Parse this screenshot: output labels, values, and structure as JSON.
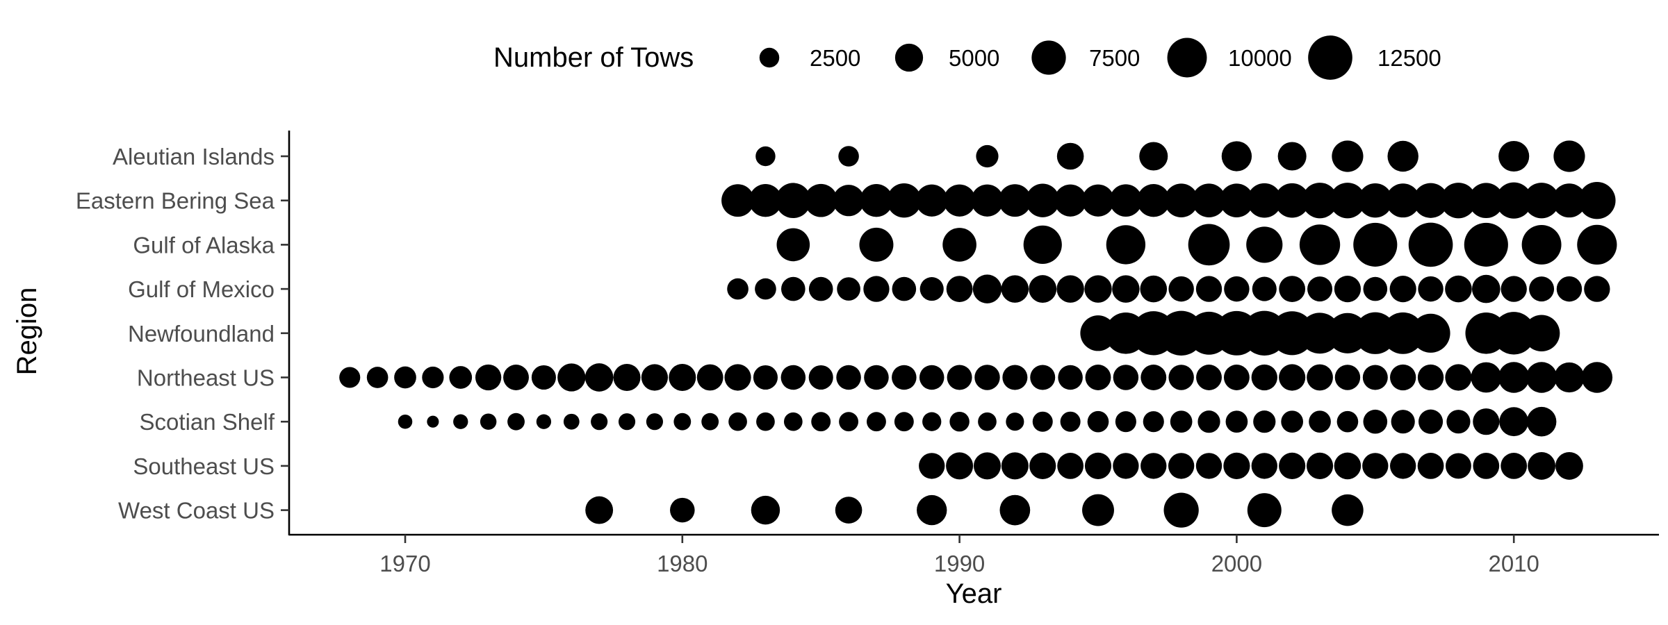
{
  "chart_data": {
    "type": "scatter",
    "xlabel": "Year",
    "ylabel": "Region",
    "xlim": [
      1965.7,
      2015.5
    ],
    "x_ticks": [
      1970,
      1980,
      1990,
      2000,
      2010
    ],
    "categories": [
      "Aleutian Islands",
      "Eastern Bering Sea",
      "Gulf of Alaska",
      "Gulf of Mexico",
      "Newfoundland",
      "Northeast US",
      "Scotian Shelf",
      "Southeast US",
      "West Coast US"
    ],
    "legend": {
      "title": "Number of Tows",
      "position": "top",
      "sizes": [
        2500,
        5000,
        7500,
        10000,
        12500
      ]
    },
    "grid": false,
    "series": [
      {
        "category": "Aleutian Islands",
        "points": [
          [
            1983,
            2500
          ],
          [
            1986,
            2700
          ],
          [
            1991,
            3200
          ],
          [
            1994,
            4600
          ],
          [
            1997,
            5200
          ],
          [
            2000,
            5800
          ],
          [
            2002,
            5200
          ],
          [
            2004,
            6300
          ],
          [
            2006,
            6100
          ],
          [
            2010,
            6000
          ],
          [
            2012,
            6300
          ]
        ]
      },
      {
        "category": "Eastern Bering Sea",
        "points": [
          [
            1982,
            6800
          ],
          [
            1983,
            6900
          ],
          [
            1984,
            7900
          ],
          [
            1985,
            7000
          ],
          [
            1986,
            6300
          ],
          [
            1987,
            6900
          ],
          [
            1988,
            7500
          ],
          [
            1989,
            6600
          ],
          [
            1990,
            6600
          ],
          [
            1991,
            6600
          ],
          [
            1992,
            6800
          ],
          [
            1993,
            7200
          ],
          [
            1994,
            6600
          ],
          [
            1995,
            6600
          ],
          [
            1996,
            6700
          ],
          [
            1997,
            6900
          ],
          [
            1998,
            7300
          ],
          [
            1999,
            7300
          ],
          [
            2000,
            7300
          ],
          [
            2001,
            7600
          ],
          [
            2002,
            7600
          ],
          [
            2003,
            8100
          ],
          [
            2004,
            8100
          ],
          [
            2005,
            7500
          ],
          [
            2006,
            7400
          ],
          [
            2007,
            7800
          ],
          [
            2008,
            8100
          ],
          [
            2009,
            7900
          ],
          [
            2010,
            8400
          ],
          [
            2011,
            8100
          ],
          [
            2012,
            7400
          ],
          [
            2013,
            8800
          ]
        ]
      },
      {
        "category": "Gulf of Alaska",
        "points": [
          [
            1984,
            7000
          ],
          [
            1987,
            7400
          ],
          [
            1990,
            7300
          ],
          [
            1993,
            9400
          ],
          [
            1996,
            9800
          ],
          [
            1999,
            11000
          ],
          [
            2001,
            8400
          ],
          [
            2003,
            10500
          ],
          [
            2005,
            12300
          ],
          [
            2007,
            12500
          ],
          [
            2009,
            12300
          ],
          [
            2011,
            10000
          ],
          [
            2013,
            10100
          ]
        ]
      },
      {
        "category": "Gulf of Mexico",
        "points": [
          [
            1982,
            2900
          ],
          [
            1983,
            2900
          ],
          [
            1984,
            3700
          ],
          [
            1985,
            3700
          ],
          [
            1986,
            3500
          ],
          [
            1987,
            4300
          ],
          [
            1988,
            3700
          ],
          [
            1989,
            3600
          ],
          [
            1990,
            4400
          ],
          [
            1991,
            5300
          ],
          [
            1992,
            4800
          ],
          [
            1993,
            4900
          ],
          [
            1994,
            4800
          ],
          [
            1995,
            4800
          ],
          [
            1996,
            4800
          ],
          [
            1997,
            4600
          ],
          [
            1998,
            4100
          ],
          [
            1999,
            4300
          ],
          [
            2000,
            4100
          ],
          [
            2001,
            3800
          ],
          [
            2002,
            4400
          ],
          [
            2003,
            4000
          ],
          [
            2004,
            4500
          ],
          [
            2005,
            3700
          ],
          [
            2006,
            4500
          ],
          [
            2007,
            4100
          ],
          [
            2008,
            4600
          ],
          [
            2009,
            5100
          ],
          [
            2010,
            4300
          ],
          [
            2011,
            4000
          ],
          [
            2012,
            4100
          ],
          [
            2013,
            4300
          ]
        ]
      },
      {
        "category": "Newfoundland",
        "points": [
          [
            1995,
            8100
          ],
          [
            1996,
            11000
          ],
          [
            1997,
            12400
          ],
          [
            1998,
            12800
          ],
          [
            1999,
            11800
          ],
          [
            2000,
            12600
          ],
          [
            2001,
            12800
          ],
          [
            2002,
            12300
          ],
          [
            2003,
            10700
          ],
          [
            2004,
            10400
          ],
          [
            2005,
            11200
          ],
          [
            2006,
            11100
          ],
          [
            2007,
            9700
          ],
          [
            2009,
            11000
          ],
          [
            2010,
            11600
          ],
          [
            2011,
            8500
          ]
        ]
      },
      {
        "category": "Northeast US",
        "points": [
          [
            1968,
            2800
          ],
          [
            1969,
            2900
          ],
          [
            1970,
            3100
          ],
          [
            1971,
            3000
          ],
          [
            1972,
            3300
          ],
          [
            1973,
            4300
          ],
          [
            1974,
            4200
          ],
          [
            1975,
            3800
          ],
          [
            1976,
            5000
          ],
          [
            1977,
            5100
          ],
          [
            1978,
            4700
          ],
          [
            1979,
            4500
          ],
          [
            1980,
            4700
          ],
          [
            1981,
            4400
          ],
          [
            1982,
            4500
          ],
          [
            1983,
            3800
          ],
          [
            1984,
            3900
          ],
          [
            1985,
            3800
          ],
          [
            1986,
            3900
          ],
          [
            1987,
            3900
          ],
          [
            1988,
            3900
          ],
          [
            1989,
            3900
          ],
          [
            1990,
            4000
          ],
          [
            1991,
            4100
          ],
          [
            1992,
            4000
          ],
          [
            1993,
            4000
          ],
          [
            1994,
            3900
          ],
          [
            1995,
            4200
          ],
          [
            1996,
            4100
          ],
          [
            1997,
            4200
          ],
          [
            1998,
            4100
          ],
          [
            1999,
            4200
          ],
          [
            2000,
            4200
          ],
          [
            2001,
            4300
          ],
          [
            2002,
            4500
          ],
          [
            2003,
            4400
          ],
          [
            2004,
            4100
          ],
          [
            2005,
            4000
          ],
          [
            2006,
            4300
          ],
          [
            2007,
            4300
          ],
          [
            2008,
            4500
          ],
          [
            2009,
            5900
          ],
          [
            2010,
            6100
          ],
          [
            2011,
            6100
          ],
          [
            2012,
            5800
          ],
          [
            2013,
            6100
          ]
        ]
      },
      {
        "category": "Scotian Shelf",
        "points": [
          [
            1970,
            1300
          ],
          [
            1971,
            900
          ],
          [
            1972,
            1400
          ],
          [
            1973,
            1700
          ],
          [
            1974,
            1900
          ],
          [
            1975,
            1400
          ],
          [
            1976,
            1600
          ],
          [
            1977,
            1800
          ],
          [
            1978,
            1800
          ],
          [
            1979,
            1800
          ],
          [
            1980,
            1900
          ],
          [
            1981,
            1900
          ],
          [
            1982,
            2200
          ],
          [
            1983,
            2200
          ],
          [
            1984,
            2200
          ],
          [
            1985,
            2400
          ],
          [
            1986,
            2400
          ],
          [
            1987,
            2400
          ],
          [
            1988,
            2400
          ],
          [
            1989,
            2300
          ],
          [
            1990,
            2500
          ],
          [
            1991,
            2200
          ],
          [
            1992,
            2100
          ],
          [
            1993,
            2600
          ],
          [
            1994,
            2600
          ],
          [
            1995,
            2900
          ],
          [
            1996,
            2800
          ],
          [
            1997,
            2800
          ],
          [
            1998,
            3100
          ],
          [
            1999,
            3200
          ],
          [
            2000,
            3100
          ],
          [
            2001,
            3200
          ],
          [
            2002,
            3100
          ],
          [
            2003,
            3100
          ],
          [
            2004,
            2900
          ],
          [
            2005,
            3700
          ],
          [
            2006,
            3600
          ],
          [
            2007,
            3800
          ],
          [
            2008,
            3600
          ],
          [
            2009,
            4500
          ],
          [
            2010,
            5400
          ],
          [
            2011,
            5600
          ]
        ]
      },
      {
        "category": "Southeast US",
        "points": [
          [
            1989,
            4300
          ],
          [
            1990,
            4700
          ],
          [
            1991,
            4700
          ],
          [
            1992,
            4700
          ],
          [
            1993,
            4500
          ],
          [
            1994,
            4400
          ],
          [
            1995,
            4500
          ],
          [
            1996,
            4300
          ],
          [
            1997,
            4300
          ],
          [
            1998,
            4300
          ],
          [
            1999,
            4300
          ],
          [
            2000,
            4500
          ],
          [
            2001,
            4300
          ],
          [
            2002,
            4500
          ],
          [
            2003,
            4500
          ],
          [
            2004,
            4600
          ],
          [
            2005,
            4300
          ],
          [
            2006,
            4300
          ],
          [
            2007,
            4400
          ],
          [
            2008,
            4200
          ],
          [
            2009,
            4400
          ],
          [
            2010,
            4400
          ],
          [
            2011,
            4900
          ],
          [
            2012,
            4900
          ]
        ]
      },
      {
        "category": "West Coast US",
        "points": [
          [
            1977,
            4900
          ],
          [
            1980,
            3900
          ],
          [
            1983,
            5300
          ],
          [
            1986,
            4600
          ],
          [
            1989,
            5800
          ],
          [
            1992,
            5900
          ],
          [
            1995,
            6500
          ],
          [
            1998,
            7800
          ],
          [
            2001,
            7400
          ],
          [
            2004,
            6400
          ]
        ]
      }
    ]
  }
}
